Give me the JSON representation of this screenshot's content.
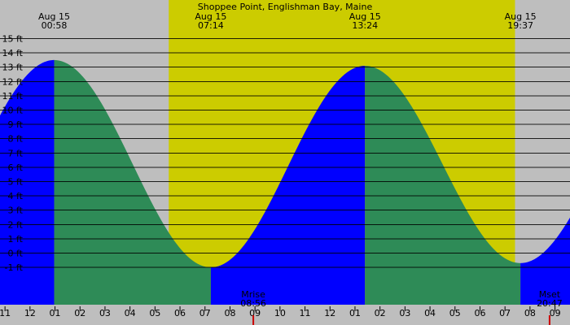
{
  "chart_data": {
    "type": "area",
    "title": "Shoppee Point, Englishman Bay, Maine",
    "y_unit": "ft",
    "ylim": [
      -2,
      15.5
    ],
    "y_ticks": [
      15,
      14,
      13,
      12,
      11,
      10,
      9,
      8,
      7,
      6,
      5,
      4,
      3,
      2,
      1,
      0,
      -1
    ],
    "y_tick_labels": [
      "15 ft",
      "14 ft",
      "13 ft",
      "12 ft",
      "11 ft",
      "10 ft",
      "9 ft",
      "8 ft",
      "7 ft",
      "6 ft",
      "5 ft",
      "4 ft",
      "3 ft",
      "2 ft",
      "1 ft",
      "0 ft",
      "-1 ft"
    ],
    "x_hour_range": [
      23.0,
      33.0
    ],
    "x_ticks": [
      23,
      24,
      25,
      26,
      27,
      28,
      29,
      30,
      31,
      32,
      33,
      34,
      35,
      36,
      37,
      38,
      39,
      40,
      41,
      42,
      43,
      44,
      45
    ],
    "x_tick_labels": [
      "11",
      "12",
      "01",
      "02",
      "03",
      "04",
      "05",
      "06",
      "07",
      "08",
      "09",
      "10",
      "11",
      "12",
      "01",
      "02",
      "03",
      "04",
      "05",
      "06",
      "07",
      "08",
      "09"
    ],
    "x_hour_domain": [
      22.8,
      45.6
    ],
    "daylight": {
      "sunrise_hour": 29.55,
      "sunset_hour": 43.4
    },
    "tides": [
      {
        "date_label": "Aug 15",
        "time_label": "00:58",
        "hour": 24.967,
        "height": 13.5,
        "kind": "high"
      },
      {
        "date_label": "Aug 15",
        "time_label": "07:14",
        "hour": 31.233,
        "height": -1.0,
        "kind": "low"
      },
      {
        "date_label": "Aug 15",
        "time_label": "13:24",
        "hour": 37.4,
        "height": 13.1,
        "kind": "high"
      },
      {
        "date_label": "Aug 15",
        "time_label": "19:37",
        "hour": 43.617,
        "height": -0.7,
        "kind": "low"
      }
    ],
    "moon_events": [
      {
        "label": "Mrise",
        "time_label": "08:56",
        "hour": 32.933
      },
      {
        "label": "Mset",
        "time_label": "20:47",
        "hour": 44.783
      }
    ],
    "colors": {
      "night": "#bebebe",
      "day": "#cccc00",
      "rising": "#0000ff",
      "falling": "#2e8b57",
      "grid": "#000000",
      "moon_tick": "#cc0000"
    }
  }
}
